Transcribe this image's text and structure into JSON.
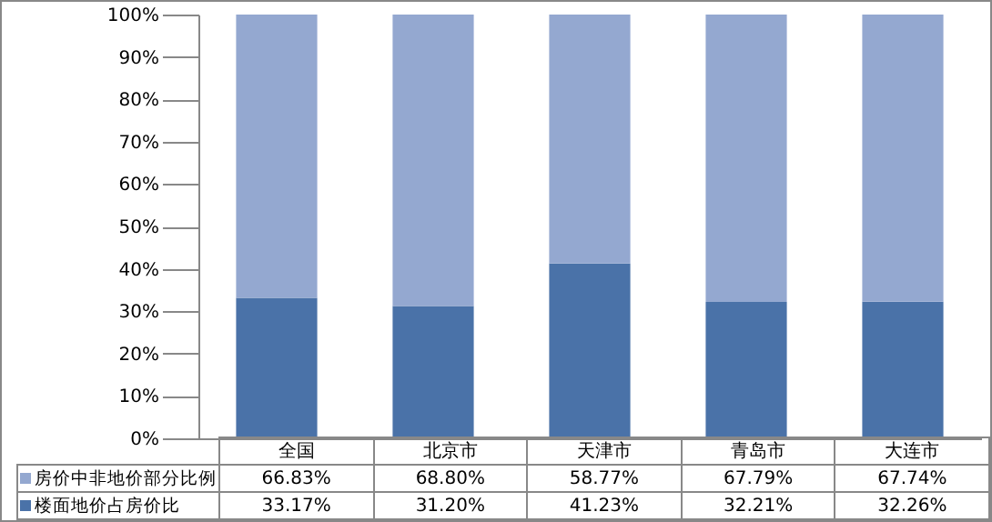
{
  "chart_data": {
    "type": "bar",
    "stacked": true,
    "categories": [
      "全国",
      "北京市",
      "天津市",
      "青岛市",
      "大连市"
    ],
    "series": [
      {
        "name": "楼面地价占房价比",
        "color": "#4a72a8",
        "values": [
          33.17,
          31.2,
          41.23,
          32.21,
          32.26
        ],
        "value_labels": [
          "33.17%",
          "31.20%",
          "41.23%",
          "32.21%",
          "32.26%"
        ]
      },
      {
        "name": "房价中非地价部分比例",
        "color": "#94a8d0",
        "values": [
          66.83,
          68.8,
          58.77,
          67.79,
          67.74
        ],
        "value_labels": [
          "66.83%",
          "68.80%",
          "58.77%",
          "67.79%",
          "67.74%"
        ]
      }
    ],
    "ylim": [
      0,
      100
    ],
    "yticks": [
      {
        "value": 0,
        "label": "0%"
      },
      {
        "value": 10,
        "label": "10%"
      },
      {
        "value": 20,
        "label": "20%"
      },
      {
        "value": 30,
        "label": "30%"
      },
      {
        "value": 40,
        "label": "40%"
      },
      {
        "value": 50,
        "label": "50%"
      },
      {
        "value": 60,
        "label": "60%"
      },
      {
        "value": 70,
        "label": "70%"
      },
      {
        "value": 80,
        "label": "80%"
      },
      {
        "value": 90,
        "label": "90%"
      },
      {
        "value": 100,
        "label": "100%"
      }
    ],
    "tick_labels": "y",
    "legend": "bottom"
  }
}
